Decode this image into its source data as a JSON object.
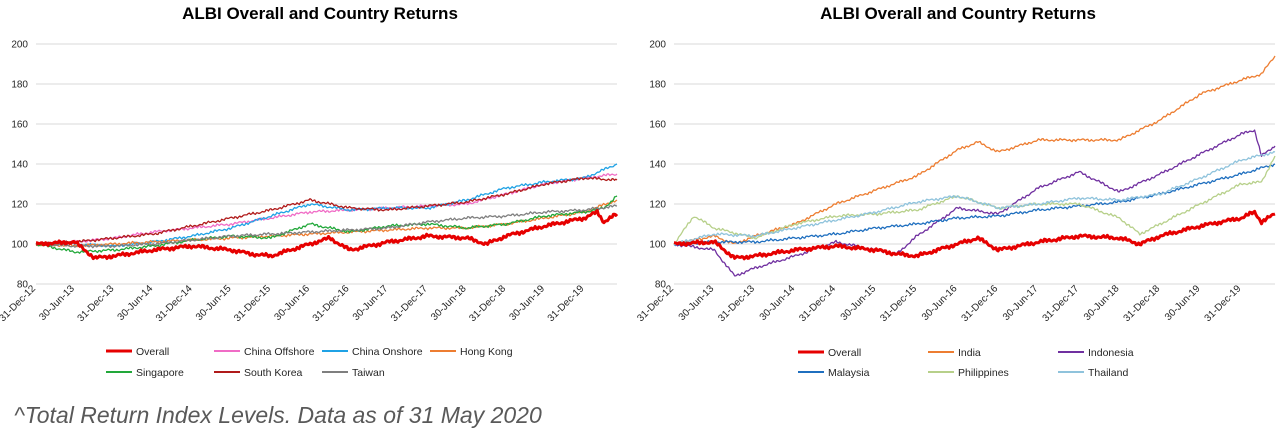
{
  "footnote": "^Total Return Index Levels. Data as of 31 May 2020",
  "chart_data": [
    {
      "type": "line",
      "title": "ALBI Overall and Country Returns",
      "xlabel": "",
      "ylabel": "",
      "ylim": [
        80,
        200
      ],
      "yticks": [
        80,
        100,
        120,
        140,
        160,
        180,
        200
      ],
      "grid": "horizontal",
      "legend_position": "bottom",
      "x_start": "2012-12-31",
      "x_end": "2020-05-31",
      "x_tick_labels": [
        "31-Dec-12",
        "30-Jun-13",
        "31-Dec-13",
        "30-Jun-14",
        "31-Dec-14",
        "30-Jun-15",
        "31-Dec-15",
        "30-Jun-16",
        "31-Dec-16",
        "30-Jun-17",
        "31-Dec-17",
        "30-Jun-18",
        "31-Dec-18",
        "30-Jun-19",
        "31-Dec-19"
      ],
      "series": [
        {
          "name": "Overall",
          "color": "#e60000",
          "width": 3,
          "x": [
            "2012-12-31",
            "2013-06-30",
            "2013-09-30",
            "2013-12-31",
            "2014-06-30",
            "2014-12-31",
            "2015-06-30",
            "2015-09-30",
            "2015-12-31",
            "2016-06-30",
            "2016-09-30",
            "2016-12-31",
            "2017-06-30",
            "2017-12-31",
            "2018-06-30",
            "2018-09-30",
            "2018-12-31",
            "2019-06-30",
            "2019-12-31",
            "2020-02-29",
            "2020-03-31",
            "2020-05-31"
          ],
          "values": [
            100,
            101,
            93,
            94,
            97,
            99,
            97,
            95,
            94,
            100,
            103,
            97,
            101,
            104,
            103,
            100,
            104,
            109,
            113,
            116,
            111,
            115
          ]
        },
        {
          "name": "China Offshore",
          "color": "#f06cc6",
          "width": 1.3,
          "x": [
            "2012-12-31",
            "2013-06-30",
            "2013-12-31",
            "2014-06-30",
            "2014-12-31",
            "2015-06-30",
            "2015-12-31",
            "2016-06-30",
            "2016-12-31",
            "2017-06-30",
            "2017-12-31",
            "2018-06-30",
            "2018-12-31",
            "2019-06-30",
            "2019-12-31",
            "2020-05-31"
          ],
          "values": [
            100,
            101,
            103,
            106,
            108,
            110,
            113,
            116,
            117,
            118,
            119,
            120,
            125,
            130,
            133,
            135
          ]
        },
        {
          "name": "China Onshore",
          "color": "#1fa2e5",
          "width": 1.3,
          "x": [
            "2012-12-31",
            "2013-06-30",
            "2013-12-31",
            "2014-06-30",
            "2014-12-31",
            "2015-06-30",
            "2015-12-31",
            "2016-06-30",
            "2016-12-31",
            "2017-06-30",
            "2017-12-31",
            "2018-06-30",
            "2018-12-31",
            "2019-06-30",
            "2019-12-31",
            "2020-05-31"
          ],
          "values": [
            100,
            100,
            99,
            101,
            104,
            108,
            114,
            120,
            117,
            118,
            118,
            122,
            128,
            131,
            133,
            140
          ]
        },
        {
          "name": "Hong Kong",
          "color": "#ed7d31",
          "width": 1.3,
          "x": [
            "2012-12-31",
            "2013-06-30",
            "2013-12-31",
            "2014-06-30",
            "2014-12-31",
            "2015-06-30",
            "2015-12-31",
            "2016-06-30",
            "2016-12-31",
            "2017-06-30",
            "2017-12-31",
            "2018-06-30",
            "2018-12-31",
            "2019-06-30",
            "2019-12-31",
            "2020-05-31"
          ],
          "values": [
            100,
            99,
            100,
            101,
            102,
            103,
            104,
            105,
            106,
            107,
            108,
            108,
            110,
            113,
            116,
            122
          ]
        },
        {
          "name": "Singapore",
          "color": "#22a83a",
          "width": 1.3,
          "x": [
            "2012-12-31",
            "2013-06-30",
            "2013-12-31",
            "2014-06-30",
            "2014-12-31",
            "2015-06-30",
            "2015-12-31",
            "2016-06-30",
            "2016-12-31",
            "2017-06-30",
            "2017-12-31",
            "2018-06-30",
            "2018-12-31",
            "2019-06-30",
            "2019-12-31",
            "2020-03-31",
            "2020-05-31"
          ],
          "values": [
            100,
            96,
            97,
            99,
            102,
            104,
            103,
            110,
            106,
            109,
            110,
            108,
            110,
            114,
            116,
            118,
            124
          ]
        },
        {
          "name": "South Korea",
          "color": "#b01a1a",
          "width": 1.3,
          "x": [
            "2012-12-31",
            "2013-06-30",
            "2013-12-31",
            "2014-06-30",
            "2014-12-31",
            "2015-06-30",
            "2015-12-31",
            "2016-06-30",
            "2016-12-31",
            "2017-06-30",
            "2017-12-31",
            "2018-06-30",
            "2018-12-31",
            "2019-06-30",
            "2019-12-31",
            "2020-05-31"
          ],
          "values": [
            100,
            101,
            103,
            105,
            109,
            113,
            117,
            122,
            118,
            117,
            119,
            121,
            125,
            130,
            133,
            132
          ]
        },
        {
          "name": "Taiwan",
          "color": "#7f7f7f",
          "width": 1.3,
          "x": [
            "2012-12-31",
            "2013-06-30",
            "2013-12-31",
            "2014-06-30",
            "2014-12-31",
            "2015-06-30",
            "2015-12-31",
            "2016-06-30",
            "2016-12-31",
            "2017-06-30",
            "2017-12-31",
            "2018-06-30",
            "2018-12-31",
            "2019-06-30",
            "2019-12-31",
            "2020-05-31"
          ],
          "values": [
            100,
            99,
            99,
            100,
            102,
            104,
            105,
            106,
            107,
            108,
            111,
            113,
            114,
            116,
            117,
            119
          ]
        }
      ]
    },
    {
      "type": "line",
      "title": "ALBI Overall and Country Returns",
      "xlabel": "",
      "ylabel": "",
      "ylim": [
        80,
        200
      ],
      "yticks": [
        80,
        100,
        120,
        140,
        160,
        180,
        200
      ],
      "grid": "horizontal",
      "legend_position": "bottom",
      "x_start": "2012-12-31",
      "x_end": "2020-05-31",
      "x_tick_labels": [
        "31-Dec-12",
        "30-Jun-13",
        "31-Dec-13",
        "30-Jun-14",
        "31-Dec-14",
        "30-Jun-15",
        "31-Dec-15",
        "30-Jun-16",
        "31-Dec-16",
        "30-Jun-17",
        "31-Dec-17",
        "30-Jun-18",
        "31-Dec-18",
        "30-Jun-19",
        "31-Dec-19"
      ],
      "series": [
        {
          "name": "Overall",
          "color": "#e60000",
          "width": 3,
          "x": [
            "2012-12-31",
            "2013-06-30",
            "2013-09-30",
            "2013-12-31",
            "2014-06-30",
            "2014-12-31",
            "2015-06-30",
            "2015-09-30",
            "2015-12-31",
            "2016-06-30",
            "2016-09-30",
            "2016-12-31",
            "2017-06-30",
            "2017-12-31",
            "2018-06-30",
            "2018-09-30",
            "2018-12-31",
            "2019-06-30",
            "2019-12-31",
            "2020-02-29",
            "2020-03-31",
            "2020-05-31"
          ],
          "values": [
            100,
            101,
            93,
            94,
            97,
            99,
            97,
            95,
            94,
            100,
            103,
            97,
            101,
            104,
            103,
            100,
            104,
            109,
            113,
            116,
            111,
            115
          ]
        },
        {
          "name": "India",
          "color": "#ed7d31",
          "width": 1.3,
          "x": [
            "2012-12-31",
            "2013-06-30",
            "2013-09-30",
            "2013-12-31",
            "2014-06-30",
            "2014-12-31",
            "2015-06-30",
            "2015-12-31",
            "2016-06-30",
            "2016-09-30",
            "2016-12-31",
            "2017-06-30",
            "2017-12-31",
            "2018-06-30",
            "2018-12-31",
            "2019-06-30",
            "2019-12-31",
            "2020-03-31",
            "2020-05-31"
          ],
          "values": [
            100,
            104,
            100,
            104,
            110,
            120,
            127,
            134,
            147,
            151,
            146,
            152,
            152,
            152,
            162,
            175,
            182,
            185,
            194
          ]
        },
        {
          "name": "Indonesia",
          "color": "#7030a0",
          "width": 1.3,
          "x": [
            "2012-12-31",
            "2013-06-30",
            "2013-09-30",
            "2013-12-31",
            "2014-06-30",
            "2014-12-31",
            "2015-06-30",
            "2015-09-30",
            "2015-12-31",
            "2016-06-30",
            "2016-12-31",
            "2017-06-30",
            "2017-12-31",
            "2018-06-30",
            "2018-12-31",
            "2019-06-30",
            "2019-12-31",
            "2020-02-29",
            "2020-03-31",
            "2020-05-31"
          ],
          "values": [
            100,
            97,
            84,
            88,
            94,
            101,
            97,
            95,
            104,
            118,
            115,
            128,
            136,
            126,
            135,
            145,
            155,
            157,
            144,
            149
          ]
        },
        {
          "name": "Malaysia",
          "color": "#1f6fbf",
          "width": 1.3,
          "x": [
            "2012-12-31",
            "2013-06-30",
            "2013-12-31",
            "2014-06-30",
            "2014-12-31",
            "2015-06-30",
            "2015-12-31",
            "2016-06-30",
            "2016-12-31",
            "2017-06-30",
            "2017-12-31",
            "2018-06-30",
            "2018-12-31",
            "2019-06-30",
            "2019-12-31",
            "2020-05-31"
          ],
          "values": [
            100,
            101,
            101,
            103,
            105,
            108,
            110,
            113,
            114,
            117,
            119,
            121,
            125,
            130,
            135,
            140
          ]
        },
        {
          "name": "Philippines",
          "color": "#b7d08a",
          "width": 1.3,
          "x": [
            "2012-12-31",
            "2013-03-31",
            "2013-06-30",
            "2013-12-31",
            "2014-06-30",
            "2014-12-31",
            "2015-06-30",
            "2015-12-31",
            "2016-06-30",
            "2016-12-31",
            "2017-06-30",
            "2017-12-31",
            "2018-06-30",
            "2018-09-30",
            "2018-12-31",
            "2019-06-30",
            "2019-12-31",
            "2020-03-31",
            "2020-05-31"
          ],
          "values": [
            100,
            114,
            108,
            103,
            110,
            114,
            115,
            117,
            124,
            118,
            120,
            120,
            113,
            105,
            110,
            120,
            130,
            131,
            144
          ]
        },
        {
          "name": "Thailand",
          "color": "#8fc3dc",
          "width": 1.3,
          "x": [
            "2012-12-31",
            "2013-06-30",
            "2013-12-31",
            "2014-06-30",
            "2014-12-31",
            "2015-06-30",
            "2015-12-31",
            "2016-06-30",
            "2016-12-31",
            "2017-06-30",
            "2017-12-31",
            "2018-06-30",
            "2018-12-31",
            "2019-06-30",
            "2019-12-31",
            "2020-05-31"
          ],
          "values": [
            100,
            105,
            104,
            108,
            112,
            116,
            121,
            124,
            118,
            120,
            123,
            122,
            125,
            133,
            142,
            146
          ]
        }
      ]
    }
  ]
}
